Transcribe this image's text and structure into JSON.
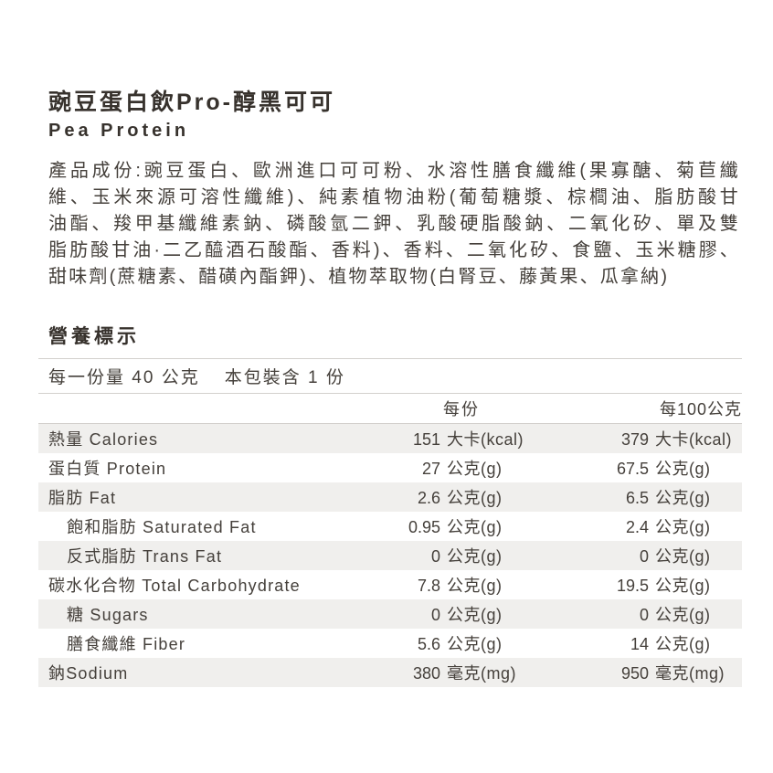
{
  "product": {
    "title_zh": "豌豆蛋白飲Pro-醇黑可可",
    "title_en": "Pea Protein"
  },
  "ingredients": {
    "lines": [
      "產品成份:豌豆蛋白、歐洲進口可可粉、水溶性膳食纖維(果寡醣、菊苣纖",
      "維、玉米來源可溶性纖維)、純素植物油粉(葡萄糖漿、棕櫚油、脂肪酸甘",
      "油酯、羧甲基纖維素鈉、磷酸氫二鉀、乳酸硬脂酸鈉、二氧化矽、單及雙",
      "脂肪酸甘油·二乙醯酒石酸酯、香料)、香料、二氧化矽、食鹽、玉米糖膠、",
      "甜味劑(蔗糖素、醋磺內酯鉀)、植物萃取物(白腎豆、藤黃果、瓜拿納)"
    ]
  },
  "nutrition": {
    "section_title": "營養標示",
    "serving_size": "每一份量 40 公克",
    "package_count": "本包裝含 1 份",
    "columns": {
      "per_serving": "每份",
      "per_100g": "每100公克"
    },
    "rows": [
      {
        "label": "熱量 Calories",
        "ps_value": "151",
        "ps_unit": "大卡(kcal)",
        "p100_value": "379",
        "p100_unit": "大卡(kcal)"
      },
      {
        "label": "蛋白質 Protein",
        "ps_value": "27",
        "ps_unit": "公克(g)",
        "p100_value": "67.5",
        "p100_unit": "公克(g)"
      },
      {
        "label": "脂肪 Fat",
        "ps_value": "2.6",
        "ps_unit": "公克(g)",
        "p100_value": "6.5",
        "p100_unit": "公克(g)"
      },
      {
        "label": "飽和脂肪 Saturated Fat",
        "ps_value": "0.95",
        "ps_unit": "公克(g)",
        "p100_value": "2.4",
        "p100_unit": "公克(g)"
      },
      {
        "label": "反式脂肪 Trans Fat",
        "ps_value": "0",
        "ps_unit": "公克(g)",
        "p100_value": "0",
        "p100_unit": "公克(g)"
      },
      {
        "label": "碳水化合物 Total Carbohydrate",
        "ps_value": "7.8",
        "ps_unit": "公克(g)",
        "p100_value": "19.5",
        "p100_unit": "公克(g)"
      },
      {
        "label": "糖 Sugars",
        "ps_value": "0",
        "ps_unit": "公克(g)",
        "p100_value": "0",
        "p100_unit": "公克(g)"
      },
      {
        "label": "膳食纖維 Fiber",
        "ps_value": "5.6",
        "ps_unit": "公克(g)",
        "p100_value": "14",
        "p100_unit": "公克(g)"
      },
      {
        "label": "鈉Sodium",
        "ps_value": "380",
        "ps_unit": "毫克(mg)",
        "p100_value": "950",
        "p100_unit": "毫克(mg)"
      }
    ]
  },
  "colors": {
    "text": "#45403b",
    "heading": "#37322d",
    "row_shade": "#f0efed",
    "rule": "#d3d0cd",
    "background": "#ffffff"
  }
}
